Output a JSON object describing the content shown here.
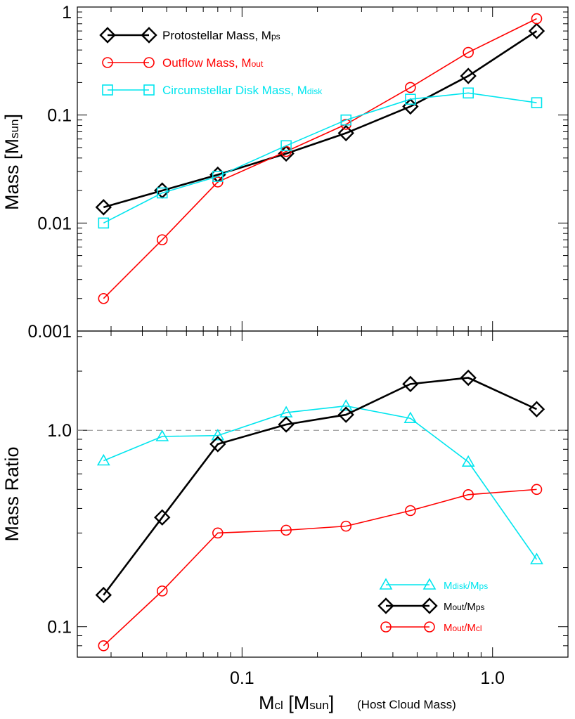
{
  "chart_data": [
    {
      "type": "line",
      "panel": "top",
      "ylabel": "Mass [M",
      "ylabel_sub": "sun",
      "ylabel_close": "]",
      "yscale": "log",
      "xscale": "log",
      "xlim": [
        0.022,
        2.0
      ],
      "ylim": [
        0.001,
        1.0
      ],
      "yticks": [
        {
          "v": 0.001,
          "label": "0.001"
        },
        {
          "v": 0.01,
          "label": "0.01"
        },
        {
          "v": 0.1,
          "label": "0.1"
        },
        {
          "v": 1,
          "label": "1"
        }
      ],
      "x": [
        0.028,
        0.048,
        0.08,
        0.15,
        0.26,
        0.47,
        0.8,
        1.5
      ],
      "series": [
        {
          "name": "Protostellar Mass, M",
          "sub": "ps",
          "color": "#000000",
          "marker": "diamond",
          "values": [
            0.014,
            0.02,
            0.028,
            0.044,
            0.068,
            0.12,
            0.23,
            0.6
          ]
        },
        {
          "name": "Outflow Mass, M",
          "sub": "out",
          "color": "#ff0000",
          "marker": "circle",
          "values": [
            0.002,
            0.007,
            0.024,
            0.046,
            0.082,
            0.18,
            0.38,
            0.78
          ]
        },
        {
          "name": "Circumstellar Disk Mass, M",
          "sub": "disk",
          "color": "#00e5ee",
          "marker": "square",
          "values": [
            0.01,
            0.019,
            0.027,
            0.052,
            0.09,
            0.14,
            0.16,
            0.13
          ]
        }
      ],
      "legend_position": "top-left"
    },
    {
      "type": "line",
      "panel": "bottom",
      "ylabel": "Mass Ratio",
      "yscale": "log",
      "xscale": "log",
      "xlim": [
        0.022,
        2.0
      ],
      "ylim": [
        0.07,
        3.2
      ],
      "yticks": [
        {
          "v": 0.1,
          "label": "0.1"
        },
        {
          "v": 1,
          "label": "1.0"
        }
      ],
      "xlabel": "M",
      "xlabel_sub": "cl",
      "xlabel_rest": " [M",
      "xlabel_sub2": "sun",
      "xlabel_close": "]",
      "xlabel_note": "(Host Cloud Mass)",
      "xticks": [
        {
          "v": 0.1,
          "label": "0.1"
        },
        {
          "v": 1,
          "label": "1.0"
        }
      ],
      "reference_line": 1.0,
      "x": [
        0.028,
        0.048,
        0.08,
        0.15,
        0.26,
        0.47,
        0.8,
        1.5
      ],
      "series": [
        {
          "name": "M",
          "sub": "disk",
          "name2": "/M",
          "sub2": "ps",
          "color": "#00e5ee",
          "marker": "triangle",
          "values": [
            0.7,
            0.93,
            0.94,
            1.23,
            1.33,
            1.15,
            0.69,
            0.22
          ]
        },
        {
          "name": "M",
          "sub": "out",
          "name2": "/M",
          "sub2": "ps",
          "color": "#000000",
          "marker": "diamond",
          "values": [
            0.145,
            0.36,
            0.85,
            1.07,
            1.2,
            1.72,
            1.85,
            1.28
          ]
        },
        {
          "name": "M",
          "sub": "out",
          "name2": "/M",
          "sub2": "cl",
          "color": "#ff0000",
          "marker": "circle",
          "values": [
            0.08,
            0.152,
            0.3,
            0.31,
            0.325,
            0.39,
            0.47,
            0.5
          ]
        }
      ],
      "legend_position": "bottom-right"
    }
  ]
}
